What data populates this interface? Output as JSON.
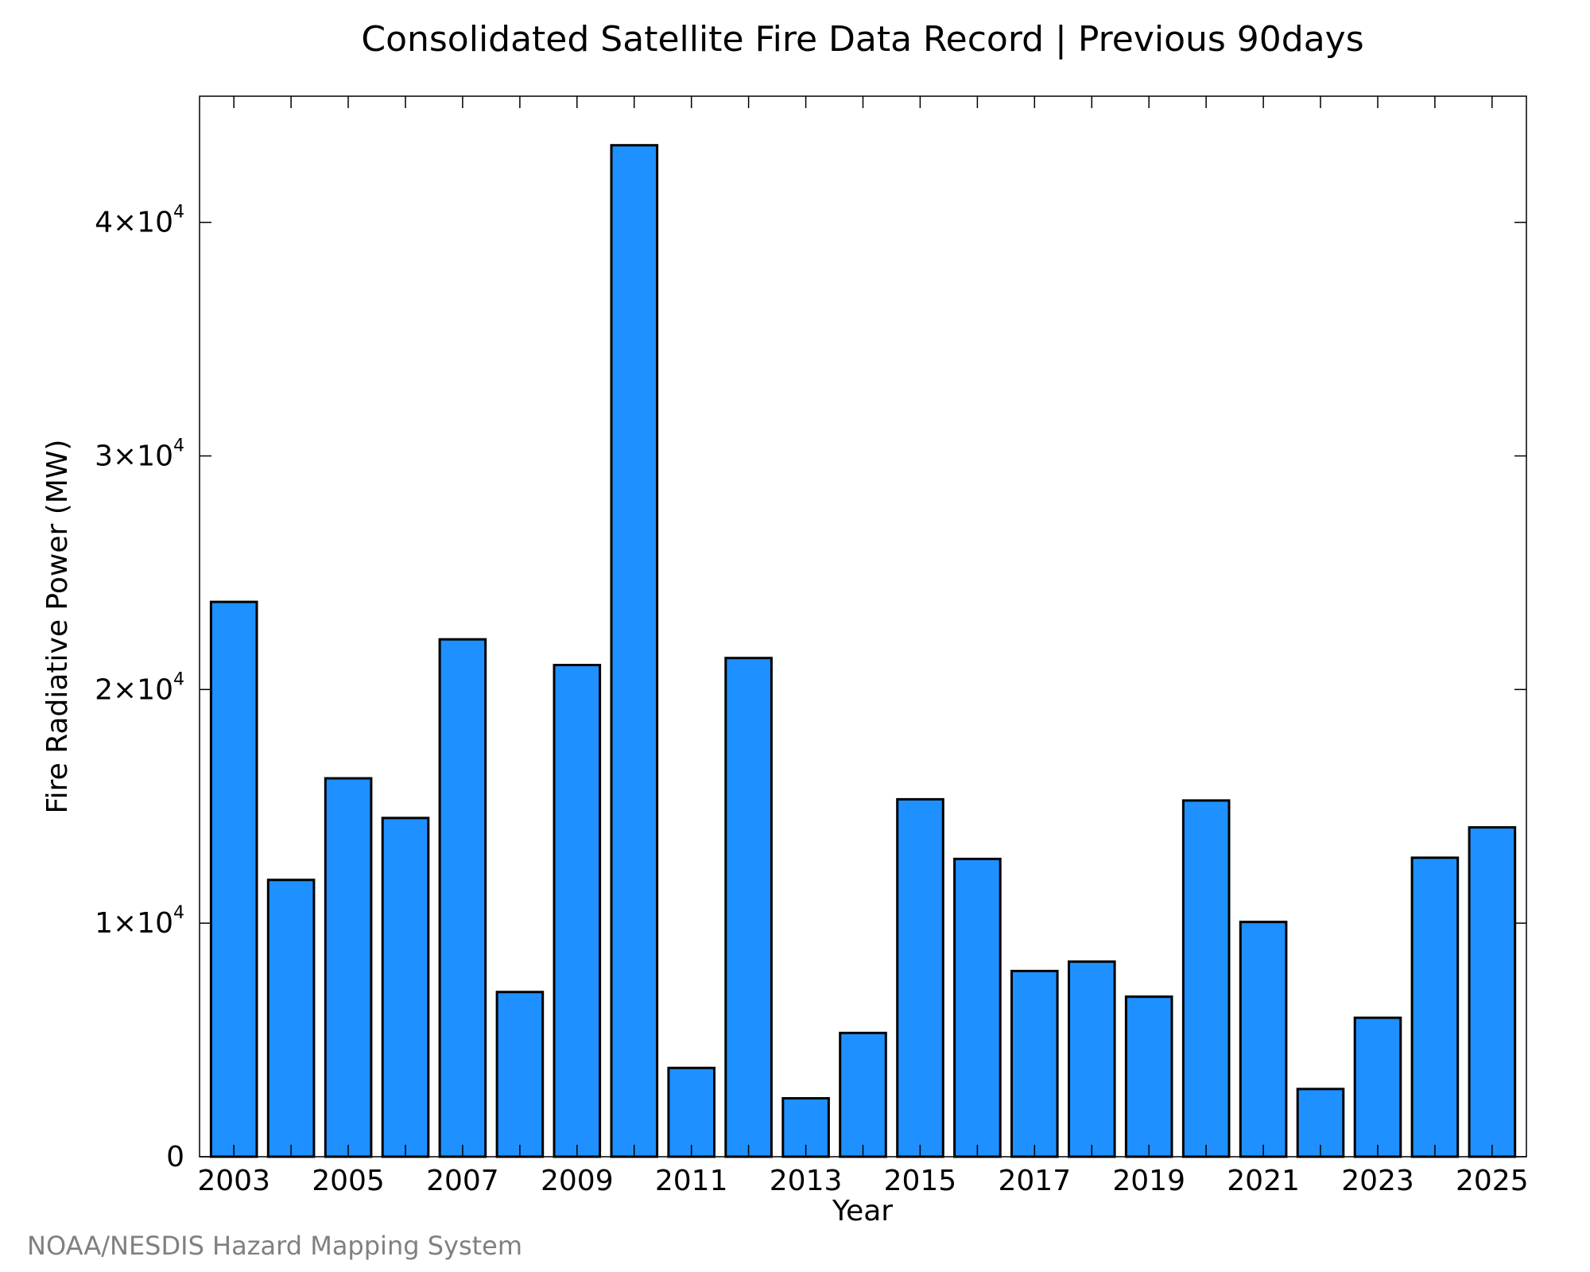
{
  "chart_data": {
    "type": "bar",
    "title": "Consolidated Satellite Fire Data Record | Previous 90days",
    "xlabel": "Year",
    "ylabel": "Fire Radiative Power (MW)",
    "credit": "NOAA/NESDIS Hazard Mapping System",
    "categories": [
      "2003",
      "2004",
      "2005",
      "2006",
      "2007",
      "2008",
      "2009",
      "2010",
      "2011",
      "2012",
      "2013",
      "2014",
      "2015",
      "2016",
      "2017",
      "2018",
      "2019",
      "2020",
      "2021",
      "2022",
      "2023",
      "2024",
      "2025"
    ],
    "values": [
      23750,
      11850,
      16200,
      14500,
      22150,
      7050,
      21050,
      43300,
      3800,
      21350,
      2500,
      5300,
      15300,
      12750,
      7950,
      8350,
      6850,
      15250,
      10050,
      2900,
      5950,
      12800,
      14100
    ],
    "x_tick_labels": [
      "2003",
      "2005",
      "2007",
      "2009",
      "2011",
      "2013",
      "2015",
      "2017",
      "2019",
      "2021",
      "2023",
      "2025"
    ],
    "y_ticks": [
      {
        "value": 0,
        "mantissa": "0",
        "exponent": ""
      },
      {
        "value": 10000,
        "mantissa": "1×10",
        "exponent": "4"
      },
      {
        "value": 20000,
        "mantissa": "2×10",
        "exponent": "4"
      },
      {
        "value": 30000,
        "mantissa": "3×10",
        "exponent": "4"
      },
      {
        "value": 40000,
        "mantissa": "4×10",
        "exponent": "4"
      }
    ],
    "ylim": [
      0,
      45400
    ],
    "grid": false,
    "legend": "none",
    "colors": {
      "bar_fill": "#1E90FF",
      "bar_stroke": "#000000",
      "axis": "#000000",
      "credit": "#808080"
    }
  }
}
